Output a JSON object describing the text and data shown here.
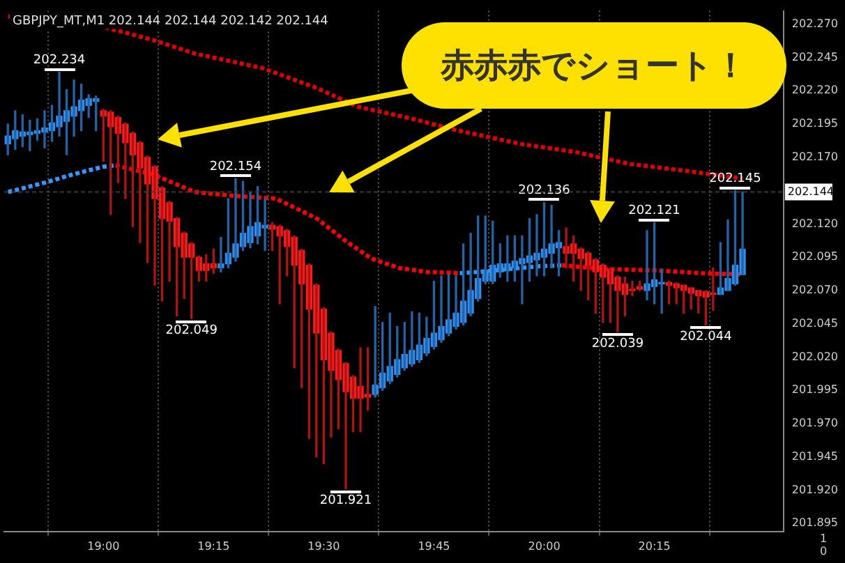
{
  "chart_data": [
    {
      "type": "candlestick",
      "title": "GBPJPY_MT,M1 202.144 202.144 202.142 202.144",
      "annotations": [
        "赤赤赤でショート！",
        {
          "text": "202.234",
          "x": 18.9,
          "y": 202.234
        },
        {
          "text": "202.049",
          "x": 19.2,
          "y": 202.049
        },
        {
          "text": "202.154",
          "x": 19.3,
          "y": 202.154
        },
        {
          "text": "201.921",
          "x": 19.55,
          "y": 201.921
        },
        {
          "text": "202.136",
          "x": 20,
          "y": 202.136
        },
        {
          "text": "202.039",
          "x": 20.1667,
          "y": 202.039
        },
        {
          "text": "202.121",
          "x": 20.25,
          "y": 202.121
        },
        {
          "text": "202.044",
          "x": 20.3667,
          "y": 202.044
        },
        {
          "text": "202.145",
          "x": 20.4333,
          "y": 202.145
        }
      ],
      "x": [
        18.7833,
        18.8,
        18.8167,
        18.8333,
        18.85,
        18.8667,
        18.8833,
        18.9,
        18.9167,
        18.9333,
        18.95,
        18.9667,
        18.9833,
        19,
        19.0167,
        19.0333,
        19.05,
        19.0667,
        19.0833,
        19.1,
        19.1167,
        19.1333,
        19.15,
        19.1667,
        19.1833,
        19.2,
        19.2167,
        19.2333,
        19.25,
        19.2667,
        19.2833,
        19.3,
        19.3167,
        19.3333,
        19.35,
        19.3667,
        19.3833,
        19.4,
        19.4167,
        19.4333,
        19.45,
        19.4667,
        19.4833,
        19.5,
        19.5167,
        19.5333,
        19.55,
        19.5667,
        19.5833,
        19.6,
        19.6167,
        19.6333,
        19.65,
        19.6667,
        19.6833,
        19.7,
        19.7167,
        19.7333,
        19.75,
        19.7667,
        19.7833,
        19.8,
        19.8167,
        19.8333,
        19.85,
        19.8667,
        19.8833,
        19.9,
        19.9167,
        19.9333,
        19.95,
        19.9667,
        19.9833,
        20,
        20.0167,
        20.0333,
        20.05,
        20.0667,
        20.0833,
        20.1,
        20.1167,
        20.1333,
        20.15,
        20.1667,
        20.1833,
        20.2,
        20.2167,
        20.2333,
        20.25,
        20.2667,
        20.2833,
        20.3,
        20.3167,
        20.3333,
        20.35,
        20.3667,
        20.3833,
        20.4,
        20.4167,
        20.4333,
        20.45
      ],
      "ohlc": [
        [
          202.18,
          202.195,
          202.172,
          202.186
        ],
        [
          202.184,
          202.205,
          202.176,
          202.19
        ],
        [
          202.186,
          202.202,
          202.178,
          202.189
        ],
        [
          202.187,
          202.198,
          202.175,
          202.189
        ],
        [
          202.188,
          202.199,
          202.183,
          202.19
        ],
        [
          202.189,
          202.205,
          202.177,
          202.192
        ],
        [
          202.19,
          202.209,
          202.182,
          202.196
        ],
        [
          202.193,
          202.234,
          202.186,
          202.201
        ],
        [
          202.197,
          202.221,
          202.172,
          202.205
        ],
        [
          202.201,
          202.228,
          202.186,
          202.208
        ],
        [
          202.205,
          202.225,
          202.19,
          202.213
        ],
        [
          202.209,
          202.217,
          202.2,
          202.214
        ],
        [
          202.212,
          202.216,
          202.19,
          202.214
        ],
        [
          202.205,
          202.206,
          202.167,
          202.201
        ],
        [
          202.204,
          202.205,
          202.127,
          202.193
        ],
        [
          202.2,
          202.201,
          202.151,
          202.188
        ],
        [
          202.195,
          202.196,
          202.139,
          202.181
        ],
        [
          202.188,
          202.189,
          202.118,
          202.172
        ],
        [
          202.181,
          202.182,
          202.106,
          202.162
        ],
        [
          202.17,
          202.171,
          202.091,
          202.15
        ],
        [
          202.163,
          202.164,
          202.074,
          202.139
        ],
        [
          202.147,
          202.148,
          202.062,
          202.124
        ],
        [
          202.136,
          202.137,
          202.077,
          202.122
        ],
        [
          202.124,
          202.125,
          202.051,
          202.103
        ],
        [
          202.113,
          202.114,
          202.064,
          202.095
        ],
        [
          202.105,
          202.106,
          202.049,
          202.095
        ],
        [
          202.095,
          202.096,
          202.077,
          202.085
        ],
        [
          202.09,
          202.097,
          202.077,
          202.085
        ],
        [
          202.09,
          202.101,
          202.083,
          202.087
        ],
        [
          202.087,
          202.11,
          202.084,
          202.09
        ],
        [
          202.09,
          202.139,
          202.087,
          202.098
        ],
        [
          202.095,
          202.154,
          202.092,
          202.105
        ],
        [
          202.103,
          202.152,
          202.1,
          202.113
        ],
        [
          202.106,
          202.144,
          202.102,
          202.118
        ],
        [
          202.111,
          202.148,
          202.105,
          202.121
        ],
        [
          202.117,
          202.139,
          202.1,
          202.119
        ],
        [
          202.119,
          202.121,
          202.1,
          202.116
        ],
        [
          202.118,
          202.119,
          202.06,
          202.111
        ],
        [
          202.115,
          202.116,
          202.081,
          202.103
        ],
        [
          202.11,
          202.111,
          202.012,
          202.089
        ],
        [
          202.1,
          202.101,
          201.997,
          202.075
        ],
        [
          202.089,
          202.09,
          201.959,
          202.056
        ],
        [
          202.074,
          202.075,
          201.945,
          202.038
        ],
        [
          202.056,
          202.057,
          201.94,
          202.018
        ],
        [
          202.038,
          202.039,
          201.96,
          202.01
        ],
        [
          202.025,
          202.026,
          201.966,
          202.003
        ],
        [
          202.015,
          202.016,
          201.921,
          201.994
        ],
        [
          202.005,
          202.006,
          201.964,
          201.989
        ],
        [
          201.998,
          202.027,
          201.964,
          201.989
        ],
        [
          201.992,
          202.027,
          201.98,
          201.99
        ],
        [
          201.992,
          202.058,
          201.99,
          201.999
        ],
        [
          201.997,
          202.046,
          201.995,
          202.008
        ],
        [
          202.002,
          202.053,
          202.0,
          202.013
        ],
        [
          202.007,
          202.043,
          202.005,
          202.018
        ],
        [
          202.012,
          202.046,
          202.01,
          202.022
        ],
        [
          202.015,
          202.054,
          202.013,
          202.025
        ],
        [
          202.018,
          202.053,
          202.016,
          202.029
        ],
        [
          202.023,
          202.05,
          202.021,
          202.034
        ],
        [
          202.028,
          202.077,
          202.026,
          202.038
        ],
        [
          202.033,
          202.081,
          202.031,
          202.043
        ],
        [
          202.038,
          202.082,
          202.036,
          202.048
        ],
        [
          202.043,
          202.081,
          202.041,
          202.053
        ],
        [
          202.046,
          202.105,
          202.044,
          202.062
        ],
        [
          202.053,
          202.113,
          202.051,
          202.07
        ],
        [
          202.064,
          202.126,
          202.062,
          202.079
        ],
        [
          202.077,
          202.126,
          202.075,
          202.085
        ],
        [
          202.077,
          202.122,
          202.075,
          202.089
        ],
        [
          202.084,
          202.105,
          202.08,
          202.09
        ],
        [
          202.085,
          202.111,
          202.077,
          202.09
        ],
        [
          202.087,
          202.111,
          202.077,
          202.092
        ],
        [
          202.09,
          202.111,
          202.06,
          202.094
        ],
        [
          202.091,
          202.124,
          202.077,
          202.096
        ],
        [
          202.093,
          202.127,
          202.081,
          202.098
        ],
        [
          202.095,
          202.136,
          202.081,
          202.101
        ],
        [
          202.098,
          202.134,
          202.087,
          202.105
        ],
        [
          202.102,
          202.115,
          202.081,
          202.106
        ],
        [
          202.103,
          202.117,
          202.087,
          202.098
        ],
        [
          202.105,
          202.111,
          202.077,
          202.098
        ],
        [
          202.101,
          202.102,
          202.07,
          202.094
        ],
        [
          202.098,
          202.099,
          202.063,
          202.089
        ],
        [
          202.093,
          202.094,
          202.053,
          202.084
        ],
        [
          202.089,
          202.09,
          202.046,
          202.08
        ],
        [
          202.086,
          202.087,
          202.046,
          202.075
        ],
        [
          202.08,
          202.081,
          202.039,
          202.07
        ],
        [
          202.075,
          202.08,
          202.051,
          202.067
        ],
        [
          202.071,
          202.077,
          202.066,
          202.07
        ],
        [
          202.073,
          202.077,
          202.07,
          202.071
        ],
        [
          202.07,
          202.115,
          202.063,
          202.075
        ],
        [
          202.073,
          202.121,
          202.06,
          202.078
        ],
        [
          202.075,
          202.086,
          202.053,
          202.076
        ],
        [
          202.076,
          202.077,
          202.06,
          202.074
        ],
        [
          202.075,
          202.076,
          202.06,
          202.072
        ],
        [
          202.074,
          202.074,
          202.053,
          202.07
        ],
        [
          202.072,
          202.072,
          202.056,
          202.068
        ],
        [
          202.07,
          202.07,
          202.053,
          202.066
        ],
        [
          202.069,
          202.07,
          202.044,
          202.065
        ],
        [
          202.068,
          202.087,
          202.055,
          202.067
        ],
        [
          202.067,
          202.106,
          202.067,
          202.072
        ],
        [
          202.07,
          202.123,
          202.07,
          202.079
        ],
        [
          202.075,
          202.145,
          202.074,
          202.089
        ],
        [
          202.082,
          202.144,
          202.082,
          202.101
        ]
      ],
      "colors": [
        "#2f8ff0",
        "#2f8ff0",
        "#2f8ff0",
        "#2f8ff0",
        "#2f8ff0",
        "#2f8ff0",
        "#2f8ff0",
        "#2f8ff0",
        "#2f8ff0",
        "#2f8ff0",
        "#2f8ff0",
        "#2f8ff0",
        "#2f8ff0",
        "#ff1a1a",
        "#ff1a1a",
        "#ff1a1a",
        "#ff1a1a",
        "#ff1a1a",
        "#ff1a1a",
        "#ff1a1a",
        "#ff1a1a",
        "#ff1a1a",
        "#ff1a1a",
        "#ff1a1a",
        "#ff1a1a",
        "#ff1a1a",
        "#ff1a1a",
        "#ff1a1a",
        "#ff1a1a",
        "#2f8ff0",
        "#2f8ff0",
        "#2f8ff0",
        "#2f8ff0",
        "#2f8ff0",
        "#2f8ff0",
        "#2f8ff0",
        "#ff1a1a",
        "#ff1a1a",
        "#ff1a1a",
        "#ff1a1a",
        "#ff1a1a",
        "#ff1a1a",
        "#ff1a1a",
        "#ff1a1a",
        "#ff1a1a",
        "#ff1a1a",
        "#ff1a1a",
        "#ff1a1a",
        "#ff1a1a",
        "#ff1a1a",
        "#2f8ff0",
        "#2f8ff0",
        "#2f8ff0",
        "#2f8ff0",
        "#2f8ff0",
        "#2f8ff0",
        "#2f8ff0",
        "#2f8ff0",
        "#2f8ff0",
        "#2f8ff0",
        "#2f8ff0",
        "#2f8ff0",
        "#2f8ff0",
        "#2f8ff0",
        "#2f8ff0",
        "#2f8ff0",
        "#2f8ff0",
        "#2f8ff0",
        "#2f8ff0",
        "#2f8ff0",
        "#2f8ff0",
        "#2f8ff0",
        "#2f8ff0",
        "#2f8ff0",
        "#2f8ff0",
        "#2f8ff0",
        "#ff1a1a",
        "#ff1a1a",
        "#ff1a1a",
        "#ff1a1a",
        "#ff1a1a",
        "#ff1a1a",
        "#ff1a1a",
        "#ff1a1a",
        "#ff1a1a",
        "#ff1a1a",
        "#ff1a1a",
        "#2f8ff0",
        "#2f8ff0",
        "#2f8ff0",
        "#ff1a1a",
        "#ff1a1a",
        "#ff1a1a",
        "#ff1a1a",
        "#ff1a1a",
        "#ff1a1a",
        "#ff1a1a",
        "#2f8ff0",
        "#2f8ff0",
        "#2f8ff0",
        "#2f8ff0"
      ],
      "series": [
        {
          "type": "line",
          "color": "#e00000",
          "line_style": "dotted",
          "marker": "none",
          "x": [
            18.784,
            19,
            19.1142,
            19.2068,
            19.3611,
            19.4846,
            19.5772,
            19.7006,
            19.7932,
            19.9475,
            20.071,
            20.1944,
            20.3179,
            20.4506
          ],
          "values": [
            202.276,
            202.268,
            202.258,
            202.248,
            202.237,
            202.222,
            202.208,
            202.199,
            202.191,
            202.18,
            202.174,
            202.165,
            202.16,
            202.154
          ]
        },
        {
          "type": "line",
          "color": "#3399ff",
          "line_style": "dotted",
          "marker": "none",
          "x": [
            18.784,
            18.8673,
            18.929,
            19,
            19.0278,
            19.4,
            19.8086,
            19.8549,
            19.9167,
            19.9784,
            20.0401
          ],
          "values": [
            202.144,
            202.151,
            202.157,
            202.163,
            202.164,
            null,
            202.083,
            202.084,
            202.086,
            202.088,
            202.089
          ]
        },
        {
          "type": "line",
          "color": "#ff0000",
          "line_style": "dotted",
          "marker": "none",
          "x": [
            19.0278,
            19.1142,
            19.2068,
            19.2994,
            19.392,
            19.4228,
            19.4846,
            19.5463,
            19.608,
            19.6698,
            19.7315,
            19.8086,
            19.9,
            20.0401,
            20.1019,
            20.1543,
            20.2562,
            20.358,
            20.4506
          ],
          "values": [
            202.164,
            202.157,
            202.144,
            202.141,
            202.139,
            202.134,
            202.124,
            202.108,
            202.094,
            202.087,
            202.084,
            202.083,
            null,
            202.089,
            202.087,
            202.086,
            202.085,
            202.083,
            202.082
          ]
        }
      ],
      "xlim": [
        18.775,
        20.543
      ],
      "xticks": [
        {
          "value": 19,
          "label": "19:00"
        },
        {
          "value": 19.25,
          "label": "19:15"
        },
        {
          "value": 19.5,
          "label": "19:30"
        },
        {
          "value": 19.75,
          "label": "19:45"
        },
        {
          "value": 20,
          "label": "20:00"
        },
        {
          "value": 20.25,
          "label": "20:15"
        }
      ],
      "ylim": [
        201.889,
        202.28
      ],
      "yticks": [
        {
          "value": 202.27,
          "label": "202.270"
        },
        202.245,
        {
          "value": 202.22,
          "label": "202.220"
        },
        202.195,
        {
          "value": 202.17,
          "label": "202.170"
        },
        {
          "value": 202.145,
          "label": null
        },
        {
          "value": 202.12,
          "label": "202.120"
        },
        202.095,
        {
          "value": 202.07,
          "label": "202.070"
        },
        202.045,
        {
          "value": 202.02,
          "label": "202.020"
        },
        201.995,
        {
          "value": 201.97,
          "label": "201.970"
        },
        201.945,
        {
          "value": 201.92,
          "label": "201.920"
        },
        201.895
      ],
      "grid": "x",
      "ref_lines": [
        {
          "axis": "y",
          "value": 202.144,
          "label": "202.144"
        }
      ]
    },
    {
      "type": "other",
      "annotations": [
        "1",
        "0"
      ]
    }
  ]
}
